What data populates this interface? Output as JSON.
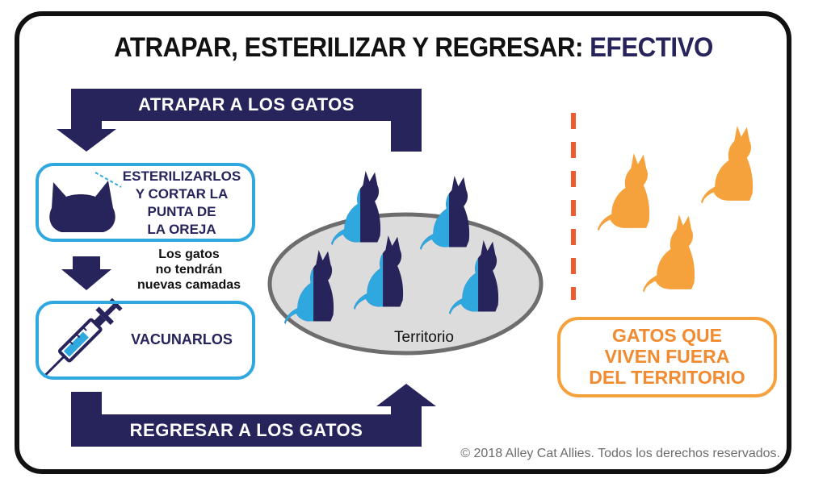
{
  "title": {
    "main": "ATRAPAR, ESTERILIZAR Y REGRESAR:",
    "accent": "EFECTIVO"
  },
  "flow": {
    "trap_label": "ATRAPAR A LOS GATOS",
    "return_label": "REGRESAR A LOS GATOS"
  },
  "steps": {
    "sterilize": [
      "ESTERILIZARLOS",
      "Y CORTAR LA",
      "PUNTA DE",
      "LA OREJA"
    ],
    "note": [
      "Los gatos",
      "no tendrán",
      "nuevas camadas"
    ],
    "vaccinate": "VACUNARLOS"
  },
  "territory": {
    "label": "Territorio"
  },
  "outside": {
    "lines": [
      "GATOS QUE",
      "VIVEN FUERA",
      "DEL TERRITORIO"
    ]
  },
  "copyright": "© 2018 Alley Cat Allies. Todos los derechos reservados.",
  "colors": {
    "navy": "#27245c",
    "blue": "#2fa8e0",
    "orange": "#f6a23c",
    "territory_fill": "#dcdcdc",
    "territory_stroke": "#6d6d6d"
  },
  "icons": [
    "cat-head-icon",
    "syringe-icon",
    "sitting-cat-icon"
  ]
}
